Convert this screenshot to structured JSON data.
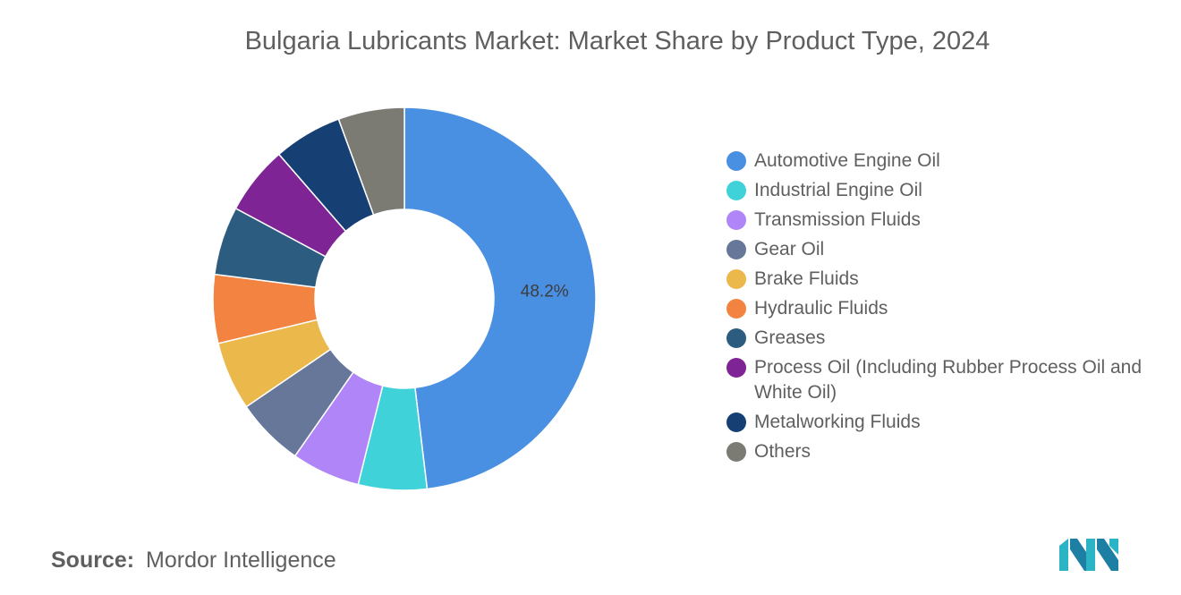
{
  "title": "Bulgaria Lubricants Market: Market Share by Product Type, 2024",
  "source": {
    "label": "Source:",
    "value": "Mordor Intelligence"
  },
  "chart_data": {
    "type": "pie",
    "title": "Bulgaria Lubricants Market: Market Share by Product Type, 2024",
    "donut": true,
    "legend_position": "right",
    "slices": [
      {
        "label": "Automotive Engine Oil",
        "value": 48.2,
        "color": "#4a90e2",
        "data_label": "48.2%"
      },
      {
        "label": "Industrial Engine Oil",
        "value": 5.8,
        "color": "#40d2d9"
      },
      {
        "label": "Transmission Fluids",
        "value": 5.8,
        "color": "#b085f8"
      },
      {
        "label": "Gear Oil",
        "value": 5.8,
        "color": "#667799"
      },
      {
        "label": "Brake Fluids",
        "value": 5.8,
        "color": "#ebb84c"
      },
      {
        "label": "Hydraulic Fluids",
        "value": 5.8,
        "color": "#f28340"
      },
      {
        "label": "Greases",
        "value": 5.8,
        "color": "#2c5c80"
      },
      {
        "label": "Process Oil (Including Rubber Process Oil and White Oil)",
        "value": 5.8,
        "color": "#7e2495"
      },
      {
        "label": "Metalworking Fluids",
        "value": 5.8,
        "color": "#163f73"
      },
      {
        "label": "Others",
        "value": 5.6,
        "color": "#7b7b74"
      }
    ]
  }
}
